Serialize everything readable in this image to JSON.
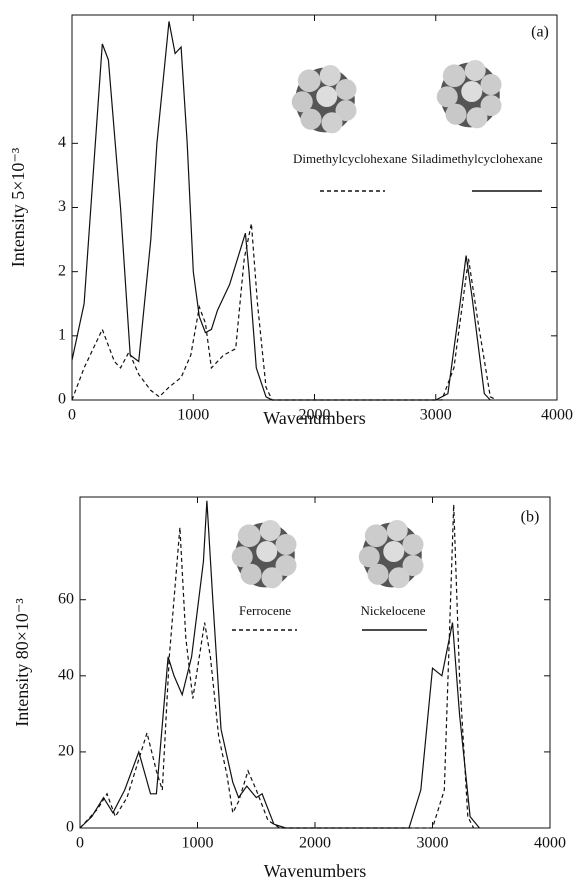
{
  "chart_data": [
    {
      "type": "line",
      "panel_label": "(a)",
      "ylabel": "Intensity 5×10⁻³",
      "xlabel": "Wavenumbers",
      "xlim": [
        0,
        4000
      ],
      "ylim": [
        0,
        6
      ],
      "xticks": [
        0,
        1000,
        2000,
        3000,
        4000
      ],
      "yticks": [
        0,
        1,
        2,
        3,
        4
      ],
      "series": [
        {
          "name": "Dimethylcyclohexane",
          "color": "#111111",
          "line_style": "dashed",
          "x": [
            0,
            100,
            250,
            350,
            400,
            470,
            550,
            650,
            720,
            800,
            900,
            980,
            1050,
            1100,
            1150,
            1250,
            1350,
            1420,
            1480,
            1530,
            1600,
            1650,
            3050,
            3150,
            3270,
            3350,
            3450,
            3500
          ],
          "values": [
            0,
            0.5,
            1.1,
            0.6,
            0.5,
            0.75,
            0.4,
            0.15,
            0.05,
            0.2,
            0.35,
            0.7,
            1.45,
            1.2,
            0.5,
            0.7,
            0.8,
            2.2,
            2.75,
            1.5,
            0.2,
            0,
            0,
            0.5,
            2.2,
            1.2,
            0.05,
            0
          ]
        },
        {
          "name": "Siladimethylcyclohexane",
          "color": "#111111",
          "line_style": "solid",
          "x": [
            0,
            100,
            250,
            300,
            400,
            480,
            550,
            650,
            700,
            800,
            850,
            900,
            950,
            1000,
            1050,
            1100,
            1150,
            1200,
            1300,
            1430,
            1460,
            1520,
            1600,
            1650,
            3000,
            3100,
            3200,
            3250,
            3300,
            3400,
            3450
          ],
          "values": [
            0.62,
            1.5,
            5.55,
            5.3,
            3,
            0.7,
            0.6,
            2.5,
            4,
            5.9,
            5.4,
            5.5,
            4,
            2,
            1.3,
            1.05,
            1.1,
            1.4,
            1.8,
            2.6,
            2,
            0.5,
            0.05,
            0,
            0,
            0.1,
            1.5,
            2.25,
            1.6,
            0.1,
            0
          ]
        }
      ]
    },
    {
      "type": "line",
      "panel_label": "(b)",
      "ylabel": "Intensity 80×10⁻³",
      "xlabel": "Wavenumbers",
      "xlim": [
        0,
        4000
      ],
      "ylim": [
        0,
        87
      ],
      "xticks": [
        0,
        1000,
        2000,
        3000,
        4000
      ],
      "yticks": [
        0,
        20,
        40,
        60
      ],
      "series": [
        {
          "name": "Ferrocene",
          "color": "#111111",
          "line_style": "dashed",
          "x": [
            0,
            150,
            230,
            300,
            400,
            570,
            650,
            700,
            760,
            850,
            900,
            960,
            1060,
            1110,
            1180,
            1250,
            1300,
            1350,
            1430,
            1500,
            1600,
            1700,
            3000,
            3100,
            3180,
            3230,
            3300,
            3350
          ],
          "values": [
            0,
            5,
            9,
            3,
            8,
            25,
            15,
            10,
            45,
            79,
            50,
            34,
            54,
            45,
            24,
            14,
            4,
            7,
            15,
            10,
            2,
            0,
            0,
            10,
            85,
            40,
            3,
            0
          ]
        },
        {
          "name": "Nickelocene",
          "color": "#111111",
          "line_style": "solid",
          "x": [
            0,
            100,
            200,
            280,
            380,
            500,
            600,
            650,
            750,
            800,
            870,
            950,
            1050,
            1080,
            1130,
            1200,
            1300,
            1350,
            1420,
            1500,
            1550,
            1650,
            1750,
            2800,
            2900,
            3000,
            3080,
            3170,
            3230,
            3320,
            3400
          ],
          "values": [
            0,
            3,
            8,
            4,
            10,
            20,
            9,
            9,
            45,
            40,
            35,
            45,
            70,
            86,
            60,
            26,
            12,
            8,
            11,
            8,
            9,
            1,
            0,
            0,
            10,
            42,
            40,
            54,
            30,
            3,
            0
          ]
        }
      ]
    }
  ]
}
